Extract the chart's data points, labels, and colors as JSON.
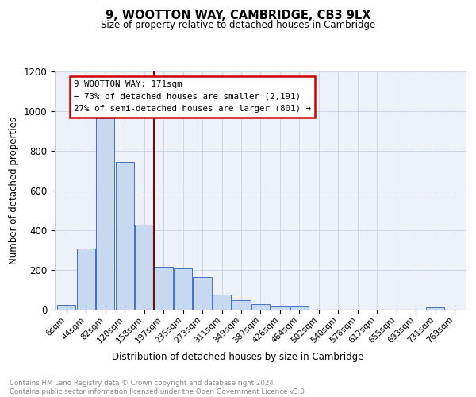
{
  "title1": "9, WOOTTON WAY, CAMBRIDGE, CB3 9LX",
  "title2": "Size of property relative to detached houses in Cambridge",
  "xlabel": "Distribution of detached houses by size in Cambridge",
  "ylabel": "Number of detached properties",
  "bar_labels": [
    "6sqm",
    "44sqm",
    "82sqm",
    "120sqm",
    "158sqm",
    "197sqm",
    "235sqm",
    "273sqm",
    "311sqm",
    "349sqm",
    "387sqm",
    "426sqm",
    "464sqm",
    "502sqm",
    "540sqm",
    "578sqm",
    "617sqm",
    "655sqm",
    "693sqm",
    "731sqm",
    "769sqm"
  ],
  "bar_values": [
    25,
    310,
    965,
    745,
    430,
    215,
    210,
    165,
    75,
    47,
    30,
    18,
    15,
    0,
    0,
    0,
    0,
    0,
    0,
    13,
    0
  ],
  "bar_color": "#c6d9f0",
  "bar_edge_color": "#4472c4",
  "vline_x": 4.5,
  "vline_color": "#8b0000",
  "annotation_text": "9 WOOTTON WAY: 171sqm\n← 73% of detached houses are smaller (2,191)\n27% of semi-detached houses are larger (801) →",
  "annotation_box_color": "#ffffff",
  "annotation_box_edge_color": "#cc0000",
  "ylim": [
    0,
    1200
  ],
  "yticks": [
    0,
    200,
    400,
    600,
    800,
    1000,
    1200
  ],
  "grid_color": "#d0d8e8",
  "bg_color": "#eef2f8",
  "footer": "Contains HM Land Registry data © Crown copyright and database right 2024.\nContains public sector information licensed under the Open Government Licence v3.0.",
  "footer_color": "#888888"
}
